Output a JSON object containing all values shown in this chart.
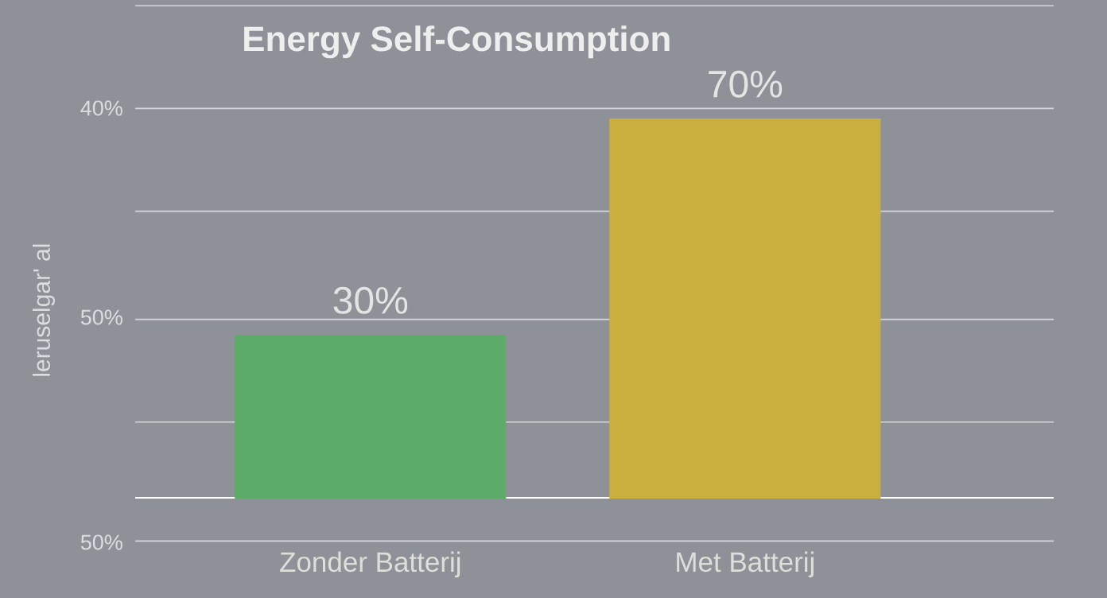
{
  "chart_data": {
    "type": "bar",
    "title": "Energy Self-Consumption",
    "ylabel": "leruselgar' al",
    "categories": [
      "Zonder Batterij",
      "Met Batterij"
    ],
    "values": [
      30,
      70
    ],
    "value_labels": [
      "30%",
      "70%"
    ],
    "colors": [
      "#5eac69",
      "#c9b03e"
    ],
    "ylim": [
      -18,
      92
    ],
    "yticks": [
      {
        "value": -8,
        "label": null
      },
      {
        "value": 14,
        "label": null
      },
      {
        "value": 33,
        "label": null
      },
      {
        "value": 53,
        "label": null
      },
      {
        "value": 72,
        "label": null
      },
      {
        "value": 91,
        "label": null
      }
    ],
    "grid": "y",
    "annotations": [
      "40%",
      "50%",
      "50%"
    ]
  }
}
